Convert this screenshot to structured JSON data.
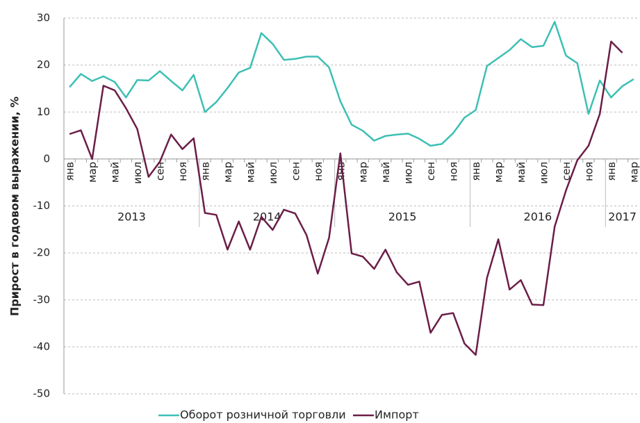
{
  "chart_data": {
    "type": "line",
    "y_label": "Прирост в годовом выражении, %",
    "categories": [
      "янв",
      null,
      "мар",
      null,
      "май",
      null,
      "июл",
      null,
      "сен",
      null,
      "ноя",
      null,
      "янв",
      null,
      "мар",
      null,
      "май",
      null,
      "июл",
      null,
      "сен",
      null,
      "ноя",
      null,
      "янв",
      null,
      "мар",
      null,
      "май",
      null,
      "июл",
      null,
      "сен",
      null,
      "ноя",
      null,
      "янв",
      null,
      "мар",
      null,
      "май",
      null,
      "июл",
      null,
      "сен",
      null,
      "ноя",
      null,
      "янв",
      null,
      "мар"
    ],
    "years": [
      "2013",
      "2014",
      "2015",
      "2016",
      "2017"
    ],
    "series": [
      {
        "name": "Оборот розничной торговли",
        "color": "#3cbfb4",
        "values": [
          15.3,
          18.1,
          16.6,
          17.6,
          16.4,
          13.1,
          16.8,
          16.7,
          18.7,
          16.6,
          14.6,
          17.9,
          10.0,
          12.1,
          15.1,
          18.4,
          19.4,
          26.8,
          24.5,
          21.1,
          21.3,
          21.8,
          21.8,
          19.5,
          12.3,
          7.3,
          6.0,
          3.9,
          4.9,
          5.2,
          5.4,
          4.3,
          2.8,
          3.2,
          5.5,
          8.8,
          10.4,
          19.8,
          21.5,
          23.2,
          25.5,
          23.8,
          24.1,
          29.2,
          22.0,
          20.4,
          9.6,
          16.7,
          13.1,
          15.5,
          17.0
        ]
      },
      {
        "name": "Импорт",
        "color": "#6b1d47",
        "values": [
          5.3,
          6.1,
          0.0,
          15.6,
          14.6,
          10.8,
          6.4,
          -3.8,
          -0.6,
          5.2,
          2.1,
          4.4,
          -11.5,
          -11.9,
          -19.3,
          -13.3,
          -19.3,
          -12.3,
          -15.1,
          -10.8,
          -11.6,
          -16.2,
          -24.4,
          -16.8,
          1.2,
          -20.1,
          -20.8,
          -23.4,
          -19.3,
          -24.1,
          -26.8,
          -26.1,
          -37.0,
          -33.2,
          -32.8,
          -39.3,
          -41.7,
          -25.3,
          -17.1,
          -27.8,
          -25.8,
          -31.0,
          -31.1,
          -14.4,
          -6.7,
          -0.3,
          2.8,
          9.6,
          25.0,
          22.6,
          null
        ]
      }
    ],
    "ylim": [
      -50,
      30
    ],
    "yticks": [
      -50,
      -40,
      -30,
      -20,
      -10,
      0,
      10,
      20,
      30
    ],
    "grid": true,
    "legend": "bottom"
  }
}
